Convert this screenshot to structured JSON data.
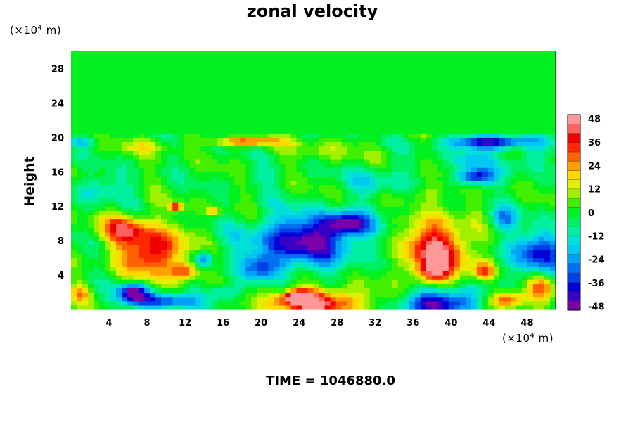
{
  "chart_data": {
    "type": "heatmap",
    "title": "zonal velocity",
    "ylabel": "Height",
    "xlabel": "",
    "y_unit": {
      "prefix": "(×10",
      "exp": "4",
      "suffix": " m)"
    },
    "x_unit": {
      "prefix": "(×10",
      "exp": "4",
      "suffix": " m)"
    },
    "xlim": [
      0,
      51
    ],
    "ylim": [
      0,
      30
    ],
    "x_ticks": [
      4,
      8,
      12,
      16,
      20,
      24,
      28,
      32,
      36,
      40,
      44,
      48
    ],
    "y_ticks": [
      4,
      8,
      12,
      16,
      20,
      24,
      28
    ],
    "colorbar": {
      "range": [
        -50,
        50
      ],
      "ticks": [
        48,
        36,
        24,
        12,
        0,
        -12,
        -24,
        -36,
        -48
      ],
      "colors": [
        "#7b00a8",
        "#3b00c8",
        "#0000d8",
        "#0040e8",
        "#0070f0",
        "#00a0f8",
        "#00c8f0",
        "#00e0d8",
        "#00f0a0",
        "#00f060",
        "#00f020",
        "#40f000",
        "#a0f000",
        "#e0f000",
        "#ffd800",
        "#ffa000",
        "#ff6000",
        "#ff2800",
        "#f00000",
        "#ff6060",
        "#ff9898"
      ]
    },
    "field": {
      "background": 0,
      "tropopause_height": 20.3,
      "features": [
        {
          "x": 24.5,
          "y": 8.0,
          "rx": 5.5,
          "ry": 3.0,
          "value": -45
        },
        {
          "x": 29.0,
          "y": 10.0,
          "rx": 2.5,
          "ry": 1.3,
          "value": -40
        },
        {
          "x": 20.0,
          "y": 5.0,
          "rx": 2.0,
          "ry": 1.5,
          "value": -28
        },
        {
          "x": 38.5,
          "y": 7.0,
          "rx": 3.5,
          "ry": 3.5,
          "value": 45
        },
        {
          "x": 38.0,
          "y": 4.5,
          "rx": 1.5,
          "ry": 1.2,
          "value": 30
        },
        {
          "x": 8.5,
          "y": 6.8,
          "rx": 3.5,
          "ry": 2.8,
          "value": 42
        },
        {
          "x": 5.5,
          "y": 9.5,
          "rx": 2.5,
          "ry": 1.5,
          "value": 30
        },
        {
          "x": 12.0,
          "y": 4.5,
          "rx": 1.3,
          "ry": 1.0,
          "value": 30
        },
        {
          "x": 6.5,
          "y": 2.0,
          "rx": 1.6,
          "ry": 1.0,
          "value": -48
        },
        {
          "x": 9.5,
          "y": 1.0,
          "rx": 3.5,
          "ry": 0.9,
          "value": -35
        },
        {
          "x": 26.0,
          "y": 0.8,
          "rx": 5.0,
          "ry": 1.6,
          "value": 45
        },
        {
          "x": 24.0,
          "y": 1.5,
          "rx": 1.5,
          "ry": 0.7,
          "value": 48
        },
        {
          "x": 39.0,
          "y": 0.8,
          "rx": 4.0,
          "ry": 1.6,
          "value": -48
        },
        {
          "x": 46.0,
          "y": 1.2,
          "rx": 2.0,
          "ry": 1.0,
          "value": 38
        },
        {
          "x": 49.5,
          "y": 2.5,
          "rx": 1.5,
          "ry": 1.5,
          "value": 25
        },
        {
          "x": 49.0,
          "y": 6.5,
          "rx": 3.0,
          "ry": 2.5,
          "value": -36
        },
        {
          "x": 45.5,
          "y": 10.5,
          "rx": 1.5,
          "ry": 1.5,
          "value": -25
        },
        {
          "x": 43.5,
          "y": 4.5,
          "rx": 1.2,
          "ry": 1.0,
          "value": 30
        },
        {
          "x": 44.0,
          "y": 19.5,
          "rx": 4.5,
          "ry": 0.8,
          "value": -45
        },
        {
          "x": 42.5,
          "y": 15.5,
          "rx": 2.0,
          "ry": 1.0,
          "value": -42
        },
        {
          "x": 42.0,
          "y": 17.5,
          "rx": 2.0,
          "ry": 1.0,
          "value": -18
        },
        {
          "x": 48.0,
          "y": 17.5,
          "rx": 2.5,
          "ry": 1.5,
          "value": -12
        },
        {
          "x": 18.5,
          "y": 19.5,
          "rx": 3.5,
          "ry": 0.5,
          "value": 35
        },
        {
          "x": 1.0,
          "y": 19.5,
          "rx": 1.5,
          "ry": 0.5,
          "value": -20
        },
        {
          "x": 8.0,
          "y": 19.0,
          "rx": 3.0,
          "ry": 0.8,
          "value": 12
        },
        {
          "x": 27.0,
          "y": 18.5,
          "rx": 4.0,
          "ry": 1.2,
          "value": 8
        },
        {
          "x": 32.0,
          "y": 15.0,
          "rx": 3.0,
          "ry": 1.8,
          "value": -14
        },
        {
          "x": 3.0,
          "y": 14.0,
          "rx": 3.0,
          "ry": 1.5,
          "value": -15
        },
        {
          "x": 11.0,
          "y": 12.0,
          "rx": 0.7,
          "ry": 0.5,
          "value": 40
        },
        {
          "x": 15.0,
          "y": 11.5,
          "rx": 0.7,
          "ry": 0.5,
          "value": 25
        },
        {
          "x": 14.0,
          "y": 6.0,
          "rx": 1.0,
          "ry": 1.0,
          "value": -30
        },
        {
          "x": 16.0,
          "y": 2.0,
          "rx": 2.0,
          "ry": 1.0,
          "value": -20
        },
        {
          "x": 1.0,
          "y": 2.0,
          "rx": 1.0,
          "ry": 1.0,
          "value": 20
        },
        {
          "x": 34.5,
          "y": 11.5,
          "rx": 1.5,
          "ry": 0.7,
          "value": -10
        },
        {
          "x": 20.0,
          "y": 15.5,
          "rx": 2.5,
          "ry": 1.0,
          "value": -8
        },
        {
          "x": 38.0,
          "y": 13.5,
          "rx": 2.5,
          "ry": 1.2,
          "value": 10
        }
      ]
    }
  },
  "footer": {
    "time_label": "TIME = 1046880.0"
  }
}
